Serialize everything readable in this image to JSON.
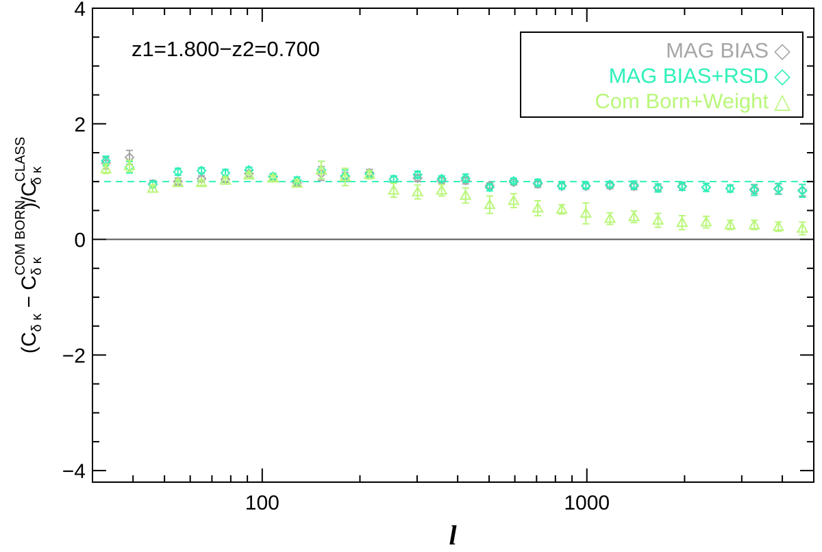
{
  "chart_data": {
    "type": "scatter",
    "xlabel": "l",
    "ylabel": {
      "main": "(C",
      "sub1": "δ κ",
      "mid": " − C",
      "sup1": "COM BORN",
      "sub2": "δ κ",
      "tail": ")/C",
      "sup2": "CLASS",
      "sub3": "δ κ"
    },
    "xscale": "log",
    "xlim": [
      30,
      5000
    ],
    "ylim": [
      -4.2,
      4
    ],
    "x_ticks": [
      100,
      1000
    ],
    "x_tick_labels": [
      "100",
      "1000"
    ],
    "y_ticks": [
      -4,
      -2,
      0,
      2,
      4
    ],
    "y_tick_labels": [
      "−4",
      "−2",
      "0",
      "2",
      "4"
    ],
    "annotation": "z1=1.800−z2=0.700",
    "legend_position": "top-right",
    "reference_lines": [
      {
        "y": 0,
        "style": "solid",
        "color": "#555555"
      },
      {
        "y": 1,
        "style": "dashed",
        "color": "#2ef0b8"
      }
    ],
    "series": [
      {
        "name": "MAG BIAS",
        "marker": "◇",
        "color": "#a6a6a6",
        "x": [
          33,
          39,
          46,
          55,
          65,
          77,
          91,
          108,
          128,
          152,
          180,
          214,
          254,
          301,
          357,
          423,
          502,
          595,
          706,
          837,
          993,
          1178,
          1397,
          1657,
          1965,
          2331,
          2764,
          3279,
          3889,
          4613
        ],
        "y": [
          1.32,
          1.42,
          0.96,
          1.0,
          1.05,
          1.04,
          1.14,
          1.08,
          0.98,
          1.14,
          1.08,
          1.15,
          1.04,
          1.06,
          1.02,
          1.02,
          0.93,
          0.99,
          0.96,
          0.92,
          0.92,
          0.93,
          0.92,
          0.9,
          0.91,
          0.9,
          0.88,
          0.87,
          0.87,
          0.85
        ],
        "err": [
          0.1,
          0.12,
          0.06,
          0.06,
          0.05,
          0.05,
          0.05,
          0.05,
          0.05,
          0.12,
          0.08,
          0.06,
          0.05,
          0.06,
          0.05,
          0.06,
          0.05,
          0.05,
          0.06,
          0.05,
          0.05,
          0.05,
          0.06,
          0.06,
          0.06,
          0.07,
          0.06,
          0.08,
          0.09,
          0.1
        ]
      },
      {
        "name": "MAG BIAS+RSD",
        "marker": "◇",
        "color": "#2ef0b8",
        "x": [
          33,
          39,
          46,
          55,
          65,
          77,
          91,
          108,
          128,
          152,
          180,
          214,
          254,
          301,
          357,
          423,
          502,
          595,
          706,
          837,
          993,
          1178,
          1397,
          1657,
          1965,
          2331,
          2764,
          3279,
          3889,
          4613
        ],
        "y": [
          1.36,
          1.25,
          0.95,
          1.17,
          1.19,
          1.15,
          1.2,
          1.09,
          1.02,
          1.2,
          1.1,
          1.13,
          1.04,
          1.12,
          1.05,
          1.06,
          0.9,
          1.01,
          0.98,
          0.93,
          0.93,
          0.95,
          0.94,
          0.89,
          0.92,
          0.9,
          0.88,
          0.85,
          0.88,
          0.84
        ],
        "err": [
          0.08,
          0.1,
          0.06,
          0.06,
          0.05,
          0.06,
          0.05,
          0.05,
          0.06,
          0.15,
          0.1,
          0.06,
          0.06,
          0.06,
          0.05,
          0.07,
          0.06,
          0.05,
          0.06,
          0.06,
          0.05,
          0.05,
          0.07,
          0.07,
          0.07,
          0.07,
          0.06,
          0.09,
          0.09,
          0.11
        ]
      },
      {
        "name": "Com Born+Weight",
        "marker": "△",
        "color": "#b9f77a",
        "x": [
          33,
          39,
          46,
          55,
          65,
          77,
          91,
          108,
          128,
          152,
          180,
          214,
          254,
          301,
          357,
          423,
          502,
          595,
          706,
          837,
          993,
          1178,
          1397,
          1657,
          1965,
          2331,
          2764,
          3279,
          3889,
          4613
        ],
        "y": [
          1.22,
          1.27,
          0.88,
          0.98,
          0.98,
          1.02,
          1.11,
          1.06,
          0.97,
          1.2,
          1.08,
          1.12,
          0.85,
          0.82,
          0.85,
          0.76,
          0.6,
          0.67,
          0.54,
          0.52,
          0.45,
          0.36,
          0.39,
          0.33,
          0.29,
          0.3,
          0.25,
          0.25,
          0.22,
          0.19
        ],
        "err": [
          0.08,
          0.1,
          0.06,
          0.06,
          0.05,
          0.06,
          0.05,
          0.05,
          0.06,
          0.15,
          0.15,
          0.07,
          0.12,
          0.12,
          0.1,
          0.13,
          0.15,
          0.12,
          0.13,
          0.08,
          0.18,
          0.1,
          0.1,
          0.12,
          0.12,
          0.1,
          0.08,
          0.08,
          0.08,
          0.11
        ]
      }
    ]
  }
}
